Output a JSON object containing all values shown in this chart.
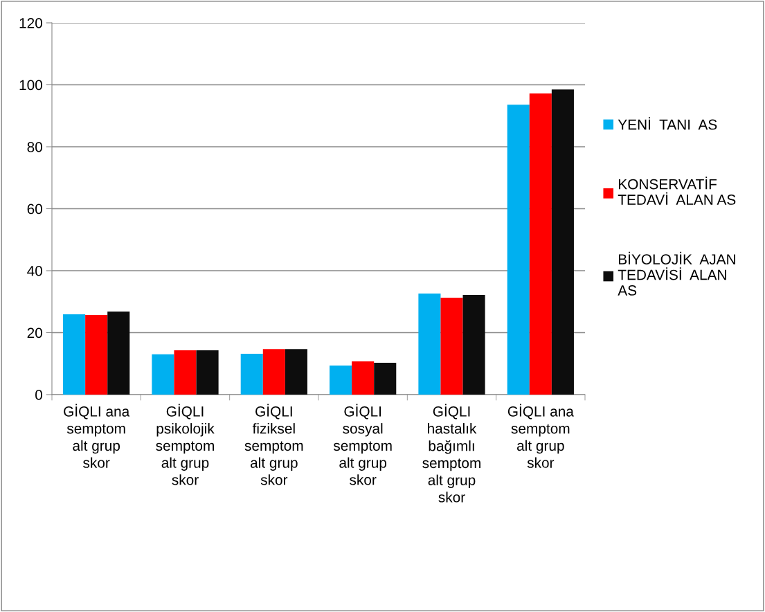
{
  "chart_data": {
    "type": "bar",
    "categories": [
      "GİQLI ana\nsemptom\nalt grup\nskor",
      "GİQLI\npsikolojik\nsemptom\nalt grup\nskor",
      "GİQLI\nfiziksel\nsemptom\nalt grup\nskor",
      "GİQLI\nsosyal\nsemptom\nalt grup\nskor",
      "GİQLI\nhastalık\nbağımlı\nsemptom\nalt grup\nskor",
      "GİQLI ana\nsemptom\nalt grup\nskor"
    ],
    "series": [
      {
        "name": "YENİ  TANI  AS",
        "color": "#00b0f0",
        "values": [
          25.9,
          13.0,
          13.2,
          9.4,
          32.6,
          93.6
        ]
      },
      {
        "name": "KONSERVATİF\nTEDAVİ  ALAN AS",
        "color": "#ff0000",
        "values": [
          25.7,
          14.3,
          14.7,
          10.7,
          31.3,
          97.2
        ]
      },
      {
        "name": "BİYOLOJİK  AJAN\nTEDAVİSİ  ALAN\nAS",
        "color": "#0d0d0d",
        "values": [
          26.8,
          14.3,
          14.7,
          10.3,
          32.2,
          98.5
        ]
      }
    ],
    "ylim": [
      0,
      120
    ],
    "yticks": [
      0,
      20,
      40,
      60,
      80,
      100,
      120
    ],
    "grid": "y",
    "legend": "right"
  }
}
